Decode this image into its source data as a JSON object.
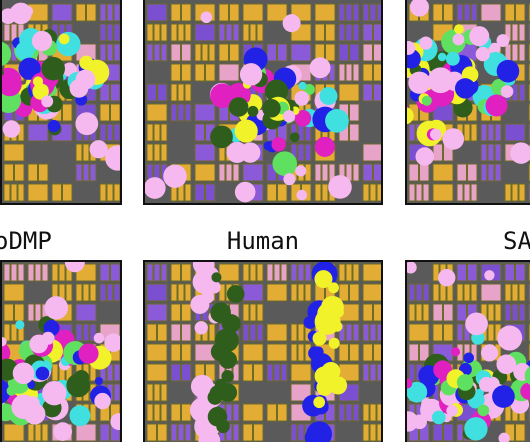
{
  "labels": [
    "oDMP",
    "Human",
    "SA"
  ]
}
